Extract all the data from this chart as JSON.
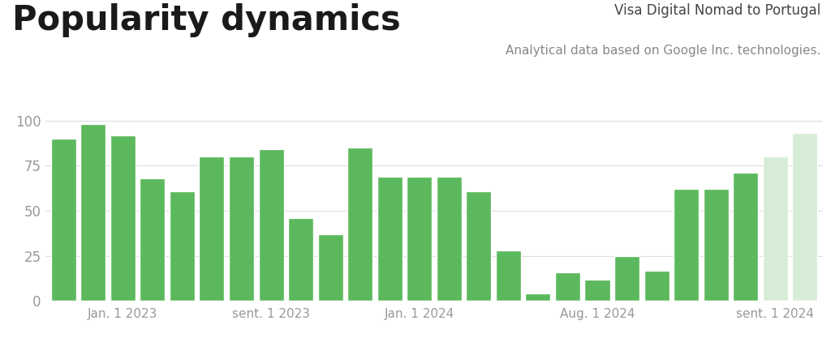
{
  "title": "Popularity dynamics",
  "subtitle_line1": "Visa Digital Nomad to Portugal",
  "subtitle_line2": "Analytical data based on Google Inc. technologies.",
  "bar_values": [
    90,
    98,
    92,
    68,
    61,
    80,
    80,
    84,
    46,
    37,
    85,
    69,
    69,
    69,
    61,
    28,
    4,
    16,
    12,
    25,
    17,
    62,
    62,
    71,
    80,
    93
  ],
  "bar_colors": [
    "#5cb85c",
    "#5cb85c",
    "#5cb85c",
    "#5cb85c",
    "#5cb85c",
    "#5cb85c",
    "#5cb85c",
    "#5cb85c",
    "#5cb85c",
    "#5cb85c",
    "#5cb85c",
    "#5cb85c",
    "#5cb85c",
    "#5cb85c",
    "#5cb85c",
    "#5cb85c",
    "#5cb85c",
    "#5cb85c",
    "#5cb85c",
    "#5cb85c",
    "#5cb85c",
    "#5cb85c",
    "#5cb85c",
    "#5cb85c",
    "#d6ecd6",
    "#d6ecd6"
  ],
  "yticks": [
    0,
    25,
    50,
    75,
    100
  ],
  "ylim": [
    0,
    110
  ],
  "xtick_labels": [
    "Jan. 1 2023",
    "sent. 1 2023",
    "Jan. 1 2024",
    "Aug. 1 2024",
    "sent. 1 2024"
  ],
  "xtick_positions": [
    2,
    7,
    12,
    18,
    24
  ],
  "background_color": "#ffffff",
  "grid_color": "#dddddd",
  "bar_edge_color": "white",
  "title_fontsize": 30,
  "subtitle1_fontsize": 12,
  "subtitle2_fontsize": 11,
  "axis_label_fontsize": 11,
  "ytick_fontsize": 12,
  "bar_width": 0.85
}
